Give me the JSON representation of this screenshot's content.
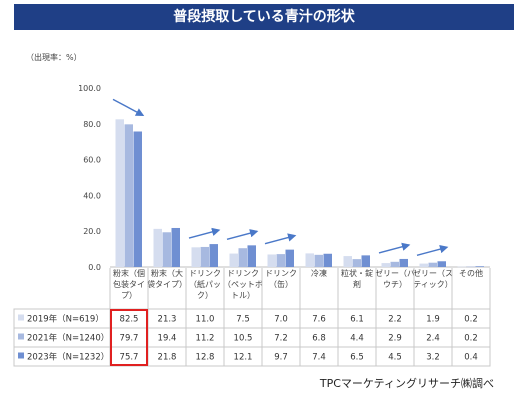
{
  "title": "普段摂取している青汁の形状",
  "unit_label": "（出現率：%）",
  "source": "TPCマーケティングリサーチ㈱調べ",
  "chart_data": {
    "type": "bar",
    "title": "普段摂取している青汁の形状",
    "ylabel": "（出現率：%）",
    "ylim": [
      0,
      100
    ],
    "yticks": [
      "0.0",
      "20.0",
      "40.0",
      "60.0",
      "80.0",
      "100.0"
    ],
    "grid": false,
    "categories": [
      "粉末（個包装タイプ）",
      "粉末（大袋タイプ）",
      "ドリンク（紙パック）",
      "ドリンク（ペットボトル）",
      "ドリンク（缶）",
      "冷凍",
      "粒状・錠剤",
      "ゼリー（パウチ）",
      "ゼリー（スティック）",
      "その他"
    ],
    "category_lines": [
      [
        "粉末（個",
        "包装タイ",
        "プ）"
      ],
      [
        "粉末（大",
        "袋タイプ）"
      ],
      [
        "ドリンク",
        "（紙パッ",
        "ク）"
      ],
      [
        "ドリンク",
        "（ペットボ",
        "トル）"
      ],
      [
        "ドリンク",
        "（缶）"
      ],
      [
        "冷凍"
      ],
      [
        "粒状・錠",
        "剤"
      ],
      [
        "ゼリー（パ",
        "ウチ）"
      ],
      [
        "ゼリー（ス",
        "ティック）"
      ],
      [
        "その他"
      ]
    ],
    "series": [
      {
        "name": "2019年（N=619）",
        "color": "#d5ddef",
        "values": [
          82.5,
          21.3,
          11.0,
          7.5,
          7.0,
          7.6,
          6.1,
          2.2,
          1.9,
          0.2
        ],
        "labels": [
          "82.5",
          "21.3",
          "11.0",
          "7.5",
          "7.0",
          "7.6",
          "6.1",
          "2.2",
          "1.9",
          "0.2"
        ]
      },
      {
        "name": "2021年（N=1240）",
        "color": "#a7b9e0",
        "values": [
          79.7,
          19.4,
          11.2,
          10.5,
          7.2,
          6.8,
          4.4,
          2.9,
          2.4,
          0.2
        ],
        "labels": [
          "79.7",
          "19.4",
          "11.2",
          "10.5",
          "7.2",
          "6.8",
          "4.4",
          "2.9",
          "2.4",
          "0.2"
        ]
      },
      {
        "name": "2023年（N=1232）",
        "color": "#6f8fd2",
        "values": [
          75.7,
          21.8,
          12.8,
          12.1,
          9.7,
          7.4,
          6.5,
          4.5,
          3.2,
          0.4
        ],
        "labels": [
          "75.7",
          "21.8",
          "12.8",
          "12.1",
          "9.7",
          "7.4",
          "6.5",
          "4.5",
          "3.2",
          "0.4"
        ]
      }
    ],
    "trend_arrows": [
      {
        "category_index": 0,
        "direction": "down"
      },
      {
        "category_index": 2,
        "direction": "up"
      },
      {
        "category_index": 3,
        "direction": "up"
      },
      {
        "category_index": 4,
        "direction": "up"
      },
      {
        "category_index": 7,
        "direction": "up"
      },
      {
        "category_index": 8,
        "direction": "up"
      }
    ],
    "highlight": {
      "category_index": 0,
      "color": "#e02020"
    },
    "arrow_color": "#4a78c8"
  }
}
